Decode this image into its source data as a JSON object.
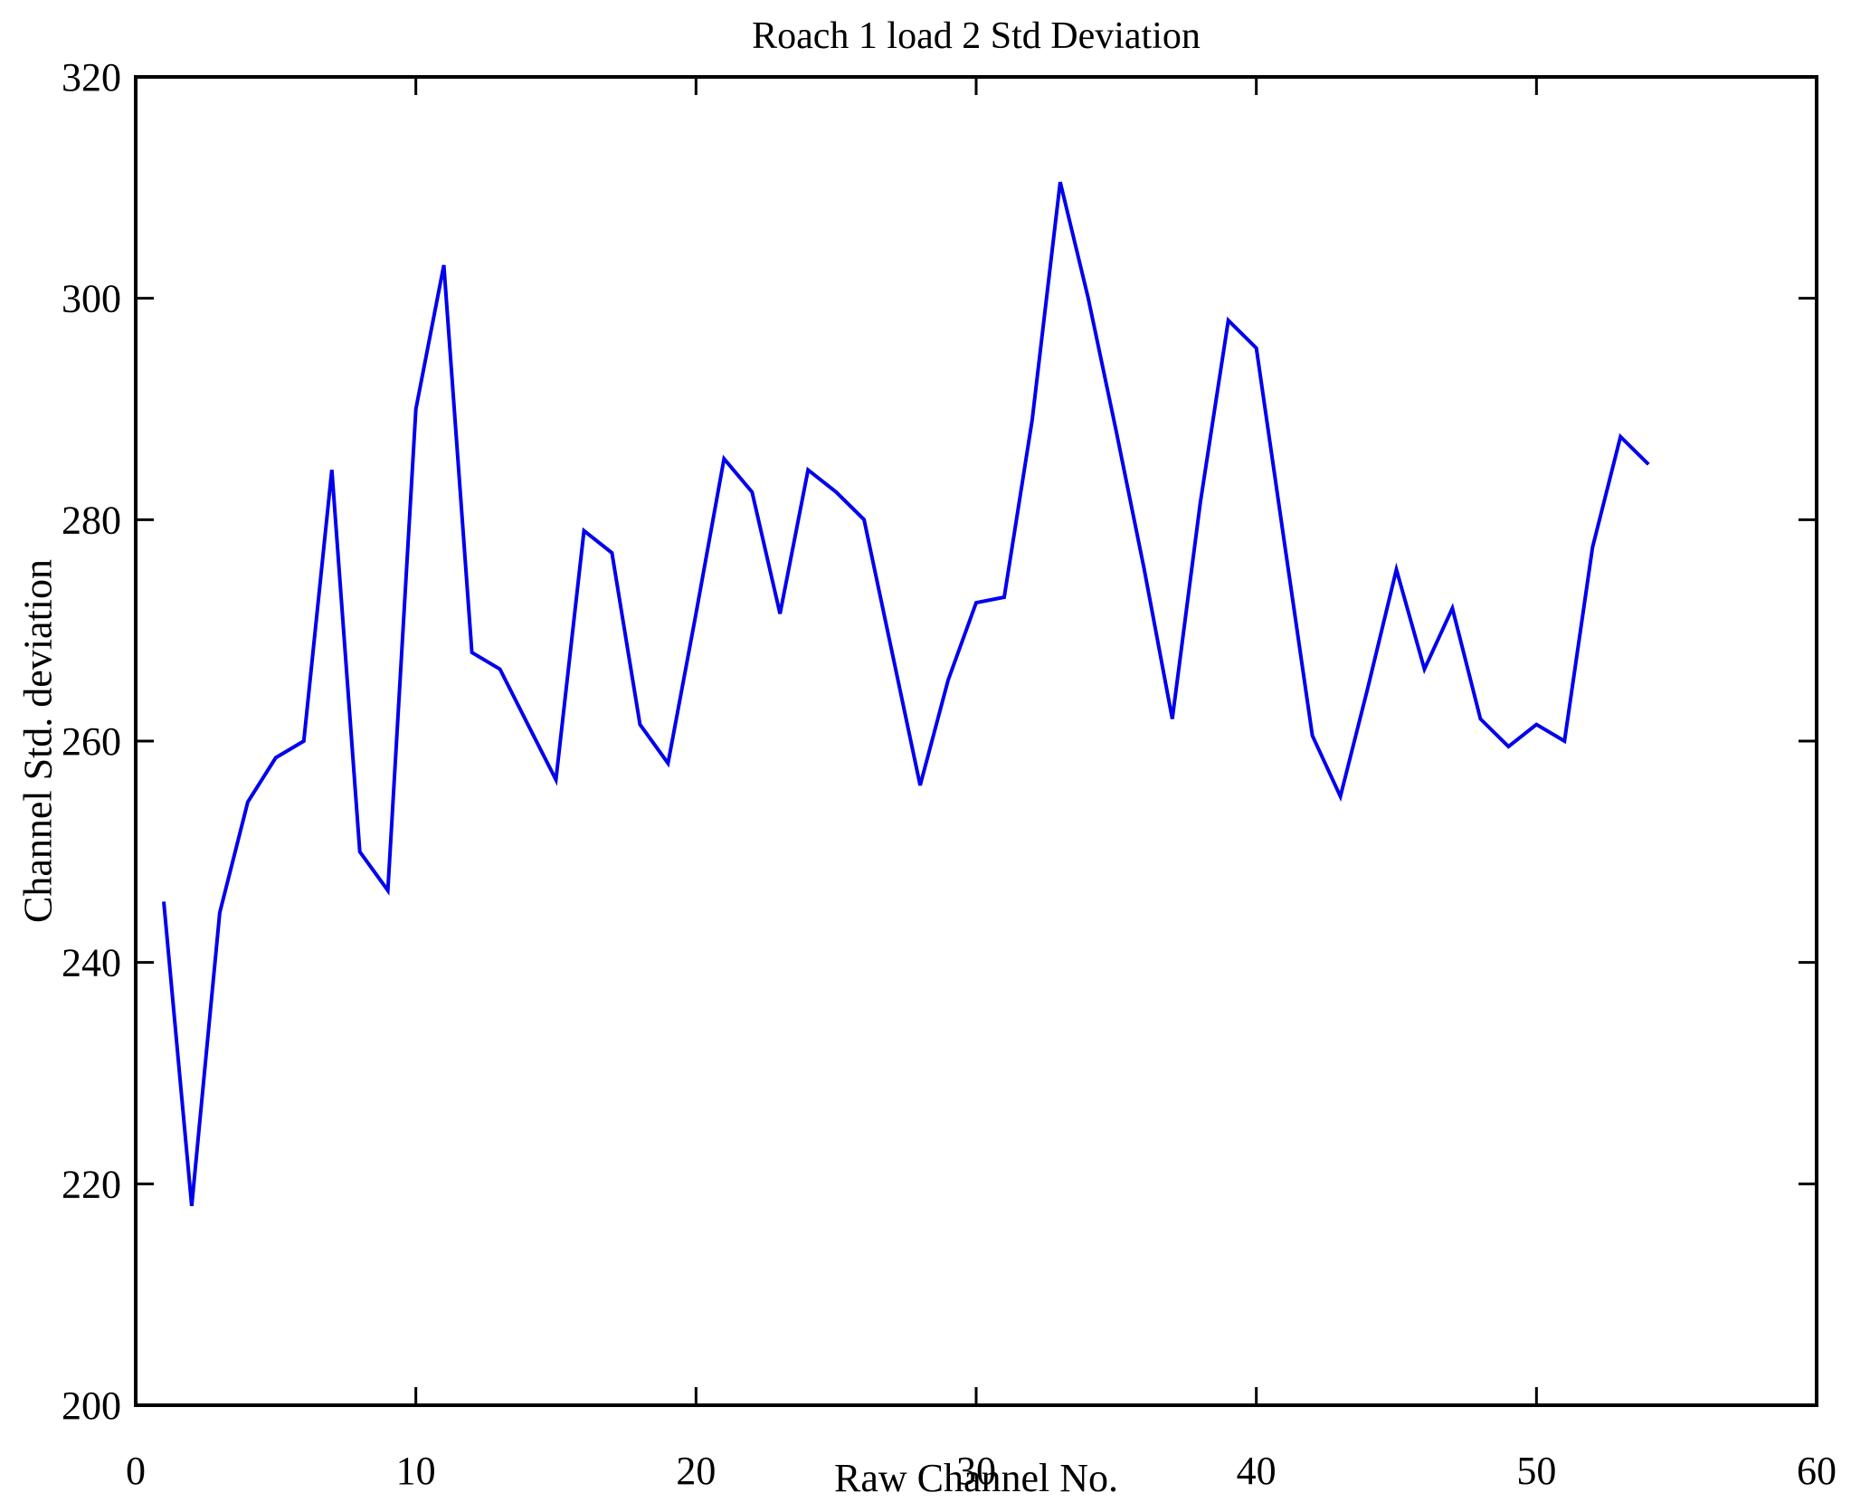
{
  "chart_data": {
    "type": "line",
    "title": "Roach 1 load 2 Std Deviation",
    "xlabel": "Raw Channel No.",
    "ylabel": "Channel Std. deviation",
    "xlim": [
      0,
      60
    ],
    "ylim": [
      200,
      320
    ],
    "xticks": [
      0,
      10,
      20,
      30,
      40,
      50,
      60
    ],
    "yticks": [
      200,
      220,
      240,
      260,
      280,
      300,
      320
    ],
    "grid": false,
    "legend": null,
    "line_color": "#0000EE",
    "axis_color": "#000000",
    "background_color": "#ffffff",
    "series_name": "Channel Std. deviation",
    "x": [
      1,
      2,
      3,
      4,
      5,
      6,
      7,
      8,
      9,
      10,
      11,
      12,
      13,
      14,
      15,
      16,
      17,
      18,
      19,
      20,
      21,
      22,
      23,
      24,
      25,
      26,
      27,
      28,
      29,
      30,
      31,
      32,
      33,
      34,
      35,
      36,
      37,
      38,
      39,
      40,
      41,
      42,
      43,
      44,
      45,
      46,
      47,
      48,
      49,
      50,
      51,
      52,
      53,
      54
    ],
    "y": [
      245.5,
      218,
      244.5,
      254.5,
      258.5,
      260,
      284.5,
      250,
      246.5,
      290,
      303,
      268,
      266.5,
      261.5,
      256.5,
      279,
      277,
      261.5,
      258,
      271.5,
      285.5,
      282.5,
      271.5,
      284.5,
      282.5,
      280,
      268,
      256,
      265.5,
      272.5,
      273,
      289,
      310.5,
      300,
      288,
      275.5,
      262,
      281.5,
      298,
      295.5,
      278,
      260.5,
      255,
      265,
      275.5,
      266.5,
      272,
      262,
      259.5,
      261.5,
      260,
      277.5,
      287.5,
      285
    ]
  }
}
